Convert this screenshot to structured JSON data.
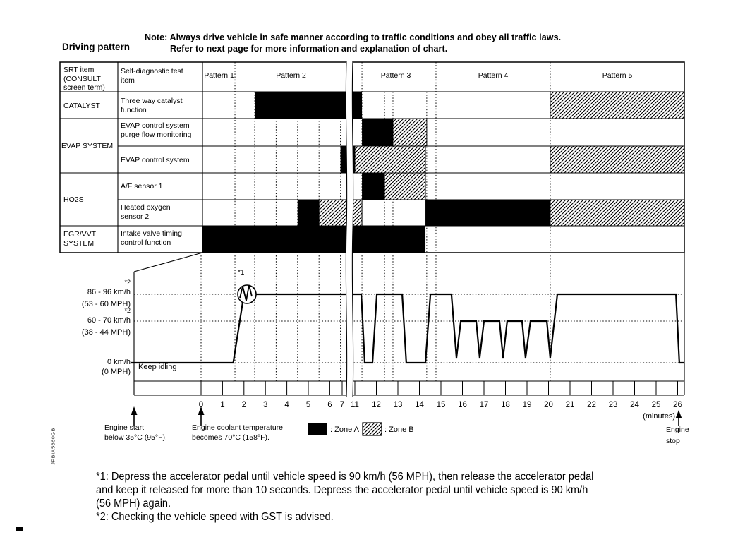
{
  "header": {
    "title": "Driving pattern",
    "note_line1": "Note: Always drive vehicle in safe manner according to traffic conditions and obey all traffic laws.",
    "note_line2": "Refer to next page for more information and explanation of chart."
  },
  "table": {
    "col1_header": "SRT item\n(CONSULT\nscreen term)",
    "col2_header": "Self-diagnostic test\nitem",
    "patterns": [
      "Pattern 1",
      "Pattern 2",
      "Pattern 3",
      "Pattern 4",
      "Pattern 5"
    ],
    "groups": {
      "catalyst": "CATALYST",
      "evap": "EVAP SYSTEM",
      "ho2s": "HO2S",
      "egr": "EGR/VVT\nSYSTEM"
    },
    "tests": {
      "three_way": "Three way catalyst\nfunction",
      "purge": "EVAP control system\npurge flow monitoring",
      "evap_ctrl": "EVAP control system",
      "af1": "A/F sensor 1",
      "ho2s2": "Heated oxygen\nsensor 2",
      "intake": "Intake valve timing\ncontrol function"
    }
  },
  "graph": {
    "star1": "*1",
    "star2": "*2",
    "speed_hi_1": "86 - 96 km/h",
    "speed_hi_2": "(53 - 60 MPH)",
    "speed_mid_1": "60 - 70 km/h",
    "speed_mid_2": "(38 - 44 MPH)",
    "speed_zero_1": "0 km/h",
    "speed_zero_2": "(0 MPH)",
    "keep_idling": "Keep idling",
    "minutes_label": "(minutes)"
  },
  "annotations": {
    "engine_start": "Engine start\nbelow 35°C (95°F).",
    "coolant": "Engine coolant temperature\nbecomes 70°C (158°F).",
    "engine_stop": "Engine\nstop",
    "legend_zone_a": ": Zone A",
    "legend_zone_b": ": Zone B",
    "side_code": "JPBIA5660GB"
  },
  "footnotes": "*1: Depress the accelerator pedal until vehicle speed is 90 km/h (56 MPH), then release the accelerator pedal\nand keep it released for more than 10 seconds. Depress the accelerator pedal until vehicle speed is 90 km/h\n(56 MPH) again.\n*2: Checking the vehicle speed with GST is advised.",
  "chart_data": {
    "type": "table+line",
    "title": "Driving pattern",
    "time_unit": "minutes",
    "time_ticks_pre": [
      0,
      1,
      2,
      3,
      4,
      5,
      6,
      7
    ],
    "time_ticks_post": [
      11,
      12,
      13,
      14,
      15,
      16,
      17,
      18,
      19,
      20,
      21,
      22,
      23,
      24,
      25,
      26
    ],
    "time_break_between": [
      7,
      11
    ],
    "speed_bands_kmh": [
      "86 - 96",
      "60 - 70",
      "0"
    ],
    "zone_a_color": "#000000",
    "zone_b_style": "diagonal-hatch",
    "gridlines": {
      "table_full": [
        1.58,
        11.33,
        14.77,
        20.08
      ],
      "table_inner": [
        2.5,
        3.5,
        4.5,
        5.5,
        6.5,
        12.38,
        12.77,
        14.34
      ],
      "graph": [
        0,
        1.58,
        2.5,
        3.5,
        4.5,
        5.5,
        6.5,
        11.33,
        12.38,
        12.77,
        14.34,
        14.77,
        20.08
      ]
    },
    "zones": [
      {
        "test": "three_way_catalyst_function",
        "segments": [
          {
            "zone": "A",
            "t": [
              2.5,
              11.33
            ]
          },
          {
            "zone": "B",
            "t": [
              20.08,
              26.31
            ]
          }
        ]
      },
      {
        "test": "evap_purge_flow_monitoring",
        "segments": [
          {
            "zone": "A",
            "t": [
              11.33,
              12.77
            ]
          },
          {
            "zone": "B",
            "t": [
              12.77,
              14.34
            ]
          }
        ]
      },
      {
        "test": "evap_control_system",
        "segments": [
          {
            "zone": "A",
            "t": [
              6.5,
              11.0
            ]
          },
          {
            "zone": "B",
            "t": [
              11.0,
              14.28
            ]
          },
          {
            "zone": "B",
            "t": [
              20.08,
              26.31
            ]
          }
        ]
      },
      {
        "test": "af_sensor_1",
        "segments": [
          {
            "zone": "A",
            "t": [
              11.33,
              12.38
            ]
          },
          {
            "zone": "B",
            "t": [
              12.38,
              14.28
            ]
          }
        ]
      },
      {
        "test": "heated_oxygen_sensor_2",
        "segments": [
          {
            "zone": "A",
            "t": [
              4.5,
              5.5
            ]
          },
          {
            "zone": "B",
            "t": [
              5.5,
              11.33
            ]
          },
          {
            "zone": "A",
            "t": [
              14.28,
              20.08
            ]
          },
          {
            "zone": "B",
            "t": [
              20.08,
              26.31
            ]
          }
        ]
      },
      {
        "test": "intake_valve_timing_control",
        "segments": [
          {
            "zone": "A",
            "t": [
              0.05,
              14.28
            ]
          }
        ]
      }
    ],
    "speed_profile": [
      [
        -3.28,
        "zero"
      ],
      [
        1.5,
        "zero"
      ],
      [
        2.0,
        "hi"
      ],
      [
        11.3,
        "hi"
      ],
      [
        11.46,
        "zero"
      ],
      [
        11.82,
        "zero"
      ],
      [
        12.02,
        "hi"
      ],
      [
        13.2,
        "hi"
      ],
      [
        13.39,
        "zero"
      ],
      [
        14.28,
        "zero"
      ],
      [
        14.51,
        "hi"
      ],
      [
        15.49,
        "hi"
      ],
      [
        15.72,
        "dip"
      ],
      [
        15.92,
        "mid"
      ],
      [
        16.64,
        "mid"
      ],
      [
        16.8,
        "dip"
      ],
      [
        17.0,
        "mid"
      ],
      [
        17.72,
        "mid"
      ],
      [
        17.89,
        "dip"
      ],
      [
        18.08,
        "mid"
      ],
      [
        18.77,
        "mid"
      ],
      [
        18.93,
        "dip"
      ],
      [
        19.16,
        "mid"
      ],
      [
        19.92,
        "mid"
      ],
      [
        20.08,
        "dip"
      ],
      [
        20.41,
        "hi"
      ],
      [
        25.92,
        "hi"
      ],
      [
        26.08,
        "zero"
      ],
      [
        26.31,
        "zero"
      ]
    ]
  }
}
